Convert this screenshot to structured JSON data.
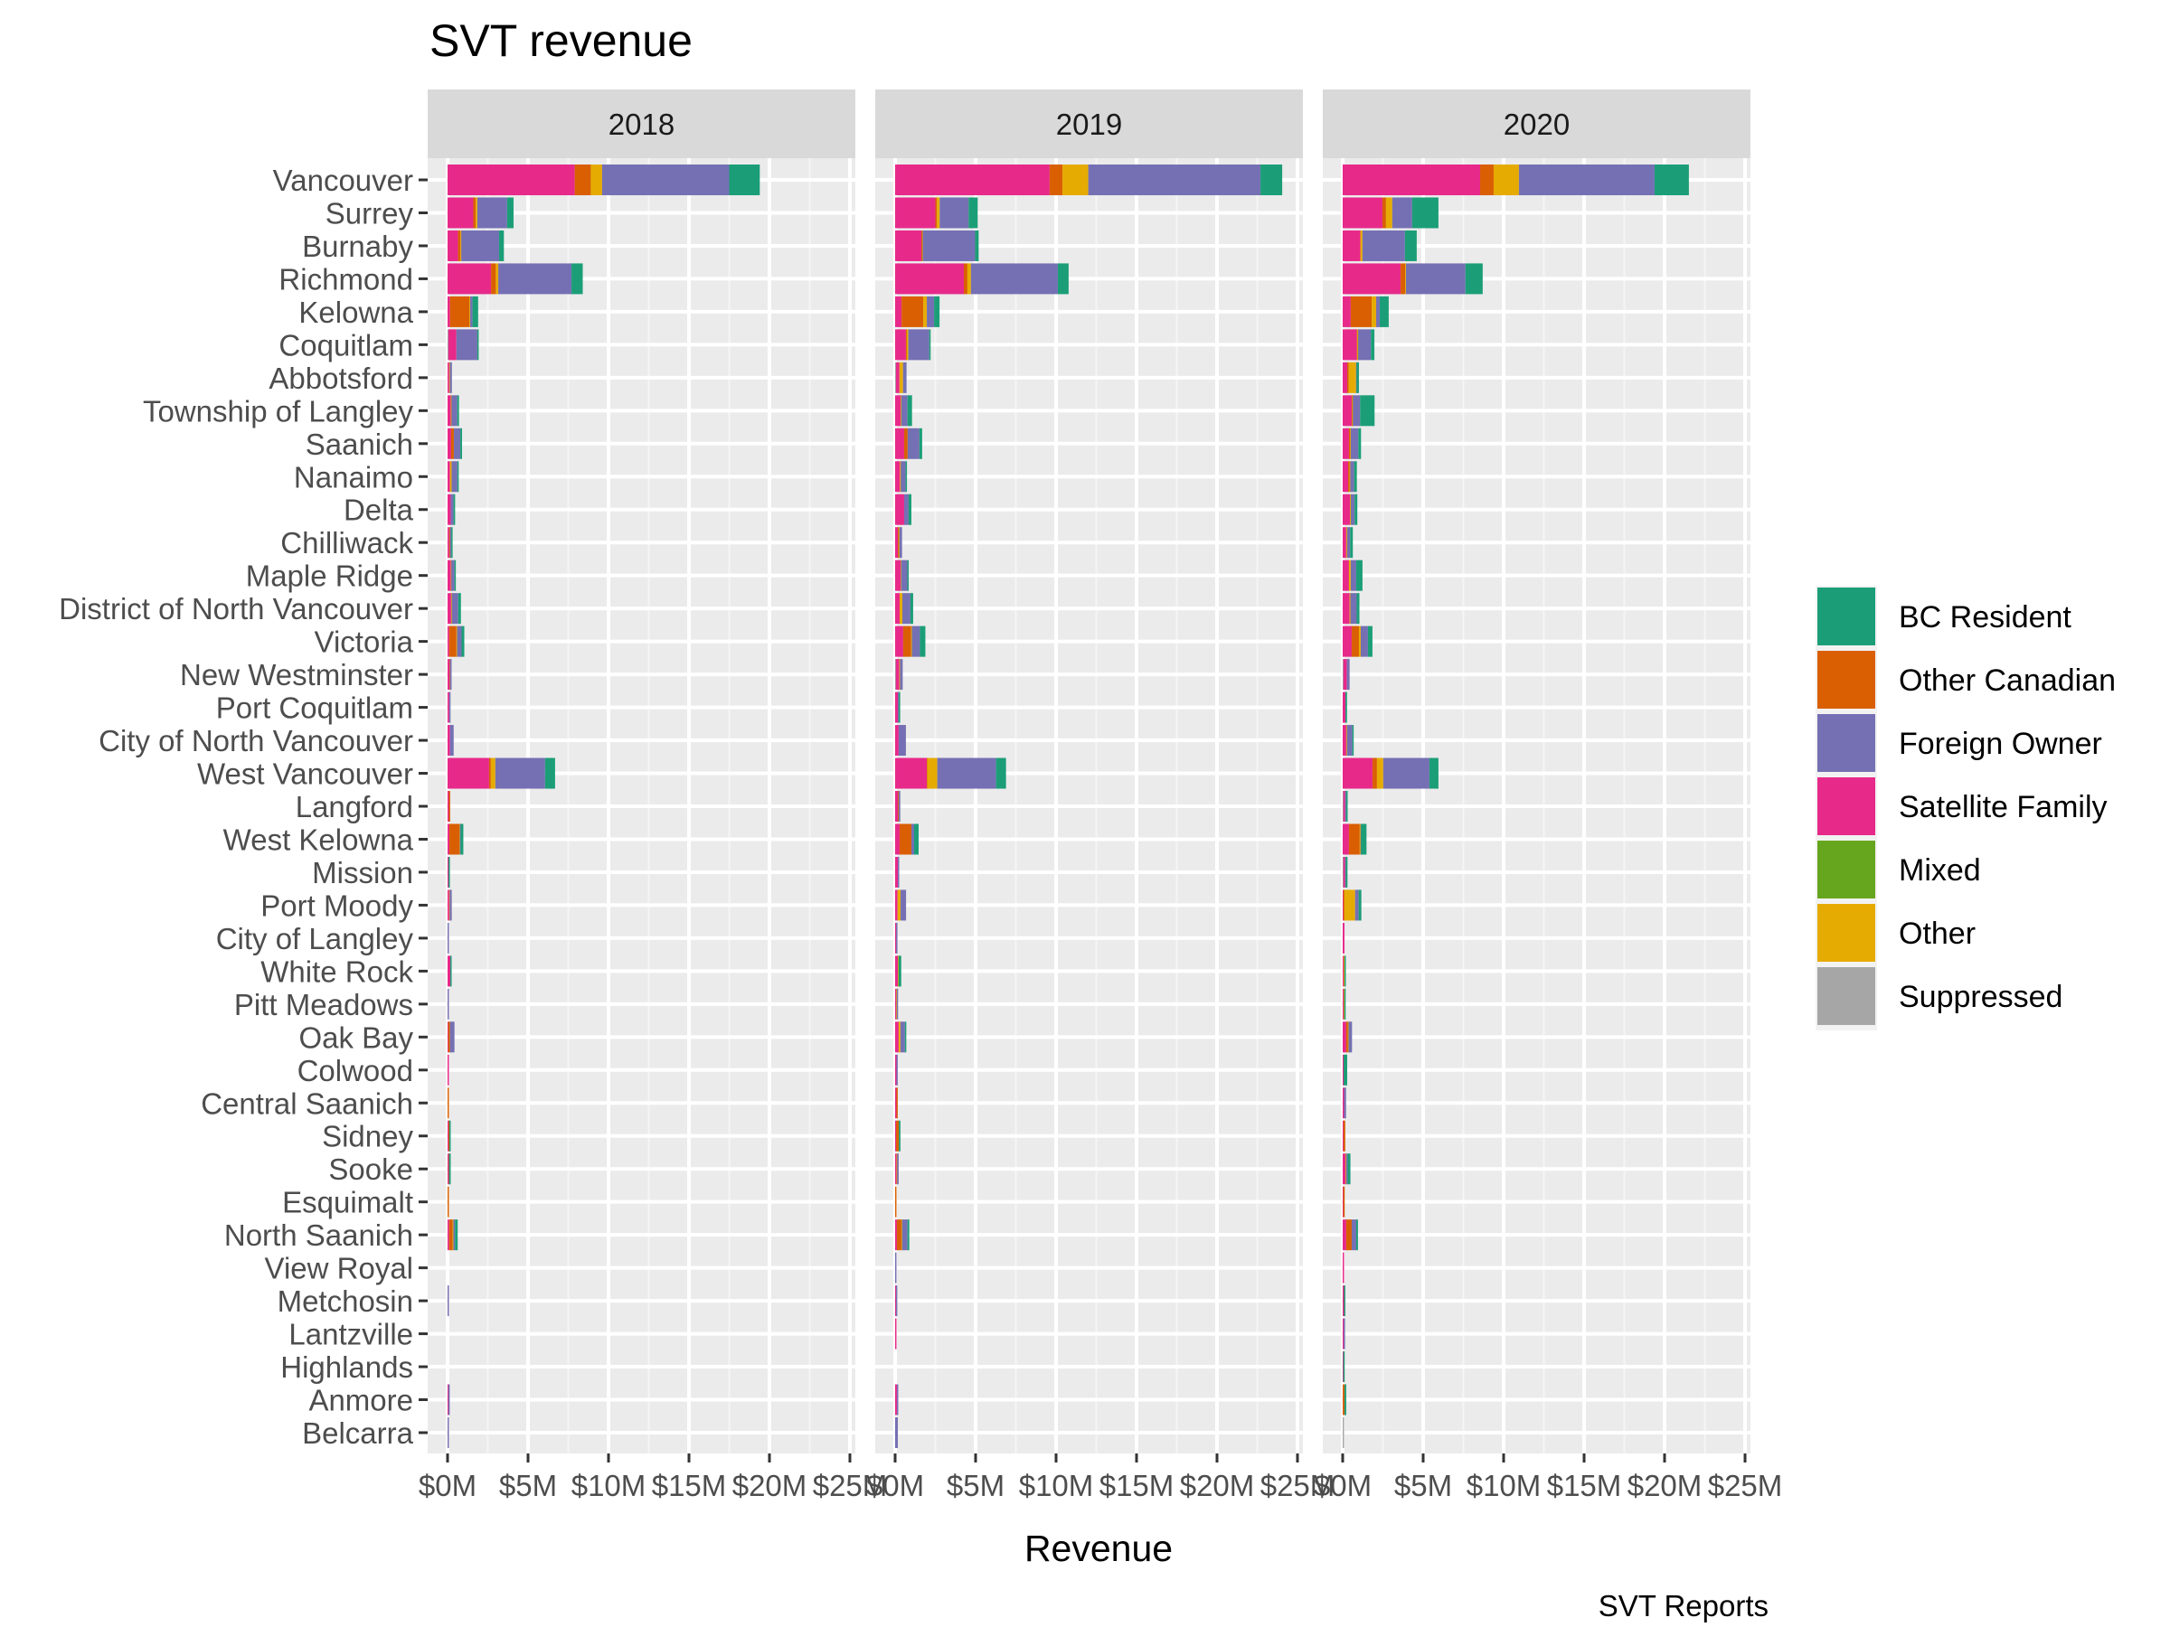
{
  "chart_data": {
    "type": "bar",
    "orientation": "horizontal",
    "stacked": true,
    "title": "SVT revenue",
    "xlabel": "Revenue",
    "ylabel": "",
    "caption": "SVT Reports",
    "xlim": [
      0,
      25
    ],
    "x_unit": "millions of dollars",
    "x_ticks": [
      0,
      5,
      10,
      15,
      20,
      25
    ],
    "x_tick_labels": [
      "$0M",
      "$5M",
      "$10M",
      "$15M",
      "$20M",
      "$25M"
    ],
    "grid": true,
    "legend_position": "right",
    "facets": [
      "2018",
      "2019",
      "2020"
    ],
    "categories": [
      "Vancouver",
      "Surrey",
      "Burnaby",
      "Richmond",
      "Kelowna",
      "Coquitlam",
      "Abbotsford",
      "Township of Langley",
      "Saanich",
      "Nanaimo",
      "Delta",
      "Chilliwack",
      "Maple Ridge",
      "District of North Vancouver",
      "Victoria",
      "New Westminster",
      "Port Coquitlam",
      "City of North Vancouver",
      "West Vancouver",
      "Langford",
      "West Kelowna",
      "Mission",
      "Port Moody",
      "City of Langley",
      "White Rock",
      "Pitt Meadows",
      "Oak Bay",
      "Colwood",
      "Central Saanich",
      "Sidney",
      "Sooke",
      "Esquimalt",
      "North Saanich",
      "View Royal",
      "Metchosin",
      "Lantzville",
      "Highlands",
      "Anmore",
      "Belcarra"
    ],
    "legend": [
      {
        "name": "BC Resident",
        "color": "#1b9e77"
      },
      {
        "name": "Other Canadian",
        "color": "#d95f02"
      },
      {
        "name": "Foreign Owner",
        "color": "#7570b3"
      },
      {
        "name": "Satellite Family",
        "color": "#e7298a"
      },
      {
        "name": "Mixed",
        "color": "#66a61e"
      },
      {
        "name": "Other",
        "color": "#e6ab02"
      },
      {
        "name": "Suppressed",
        "color": "#a6a6a6"
      }
    ],
    "stack_order": [
      "Suppressed",
      "Satellite Family",
      "Mixed",
      "Other Canadian",
      "Other",
      "Foreign Owner",
      "BC Resident"
    ],
    "series_by_facet": {
      "2018": {
        "Suppressed": [
          0,
          0,
          0,
          0,
          0,
          0.05,
          0,
          0,
          0,
          0,
          0,
          0,
          0,
          0,
          0,
          0,
          0,
          0,
          0,
          0,
          0,
          0,
          0,
          0,
          0,
          0,
          0,
          0,
          0,
          0,
          0,
          0,
          0,
          0,
          0,
          0,
          0,
          0,
          0
        ],
        "Satellite Family": [
          7.9,
          1.6,
          0.65,
          2.7,
          0.15,
          0.5,
          0.1,
          0.2,
          0.22,
          0.15,
          0.2,
          0.1,
          0.2,
          0.22,
          0.1,
          0.12,
          0.1,
          0.15,
          2.58,
          0.08,
          0.11,
          0.06,
          0.1,
          0,
          0.17,
          0,
          0.04,
          0.05,
          0,
          0.06,
          0.05,
          0,
          0.1,
          0,
          0,
          0,
          0,
          0.05,
          0
        ],
        "Mixed": [
          0,
          0,
          0,
          0,
          0,
          0,
          0,
          0,
          0,
          0,
          0,
          0,
          0,
          0,
          0,
          0,
          0,
          0,
          0,
          0,
          0,
          0,
          0,
          0,
          0,
          0,
          0,
          0,
          0,
          0,
          0,
          0,
          0,
          0,
          0,
          0,
          0,
          0,
          0
        ],
        "Other Canadian": [
          1.0,
          0.15,
          0.15,
          0.3,
          1.2,
          0,
          0,
          0,
          0.17,
          0,
          0,
          0.05,
          0,
          0,
          0.45,
          0.03,
          0,
          0,
          0.11,
          0.02,
          0.62,
          0,
          0,
          0,
          0,
          0,
          0.11,
          0,
          0.05,
          0.05,
          0.03,
          0.05,
          0.22,
          0,
          0,
          0,
          0,
          0,
          0
        ],
        "Other": [
          0.7,
          0.1,
          0.05,
          0.15,
          0.05,
          0,
          0.04,
          0.04,
          0,
          0.1,
          0,
          0,
          0.03,
          0.04,
          0.04,
          0,
          0,
          0,
          0.28,
          0,
          0.03,
          0,
          0.03,
          0,
          0,
          0,
          0,
          0,
          0,
          0,
          0,
          0,
          0.04,
          0,
          0,
          0,
          0,
          0,
          0
        ],
        "Foreign Owner": [
          7.9,
          1.85,
          2.35,
          4.55,
          0.15,
          1.3,
          0.13,
          0.36,
          0.4,
          0.36,
          0.17,
          0.08,
          0.2,
          0.4,
          0.28,
          0.1,
          0.05,
          0.23,
          3.09,
          0,
          0.05,
          0,
          0.13,
          0.05,
          0,
          0.05,
          0.28,
          0,
          0,
          0,
          0.03,
          0,
          0.1,
          0,
          0.05,
          0,
          0,
          0.05,
          0.05
        ],
        "BC Resident": [
          1.9,
          0.4,
          0.3,
          0.7,
          0.35,
          0.03,
          0,
          0.11,
          0.11,
          0.02,
          0.1,
          0.02,
          0.03,
          0.17,
          0.17,
          0,
          0,
          0,
          0.62,
          0,
          0.17,
          0.04,
          0,
          0,
          0.06,
          0,
          0,
          0,
          0,
          0.04,
          0.02,
          0,
          0.17,
          0,
          0,
          0,
          0,
          0,
          0
        ]
      },
      "2019": {
        "Suppressed": [
          0,
          0,
          0,
          0,
          0,
          0,
          0.05,
          0,
          0,
          0,
          0,
          0,
          0,
          0,
          0,
          0.04,
          0,
          0,
          0,
          0,
          0,
          0,
          0,
          0,
          0,
          0,
          0,
          0,
          0,
          0,
          0,
          0,
          0,
          0,
          0,
          0,
          0,
          0,
          0
        ],
        "Satellite Family": [
          9.6,
          2.5,
          1.63,
          4.27,
          0.4,
          0.67,
          0.22,
          0.34,
          0.56,
          0.3,
          0.56,
          0.17,
          0.34,
          0.28,
          0.5,
          0.22,
          0.17,
          0.22,
          1.97,
          0.17,
          0.28,
          0.17,
          0.15,
          0.06,
          0.17,
          0.06,
          0.22,
          0.08,
          0.08,
          0.06,
          0.08,
          0,
          0.11,
          0,
          0.05,
          0.05,
          0,
          0.11,
          0
        ],
        "Mixed": [
          0,
          0,
          0,
          0,
          0,
          0,
          0,
          0,
          0,
          0,
          0,
          0,
          0,
          0,
          0,
          0,
          0,
          0,
          0,
          0,
          0,
          0,
          0,
          0,
          0,
          0,
          0,
          0,
          0,
          0,
          0,
          0,
          0,
          0,
          0,
          0,
          0,
          0,
          0
        ],
        "Other Canadian": [
          0.8,
          0.1,
          0.05,
          0.22,
          1.35,
          0.05,
          0,
          0,
          0.22,
          0,
          0,
          0.05,
          0,
          0,
          0.5,
          0,
          0,
          0,
          0.03,
          0.05,
          0.73,
          0,
          0,
          0,
          0,
          0,
          0,
          0,
          0.08,
          0.17,
          0,
          0.05,
          0.28,
          0,
          0,
          0,
          0,
          0,
          0
        ],
        "Other": [
          1.6,
          0.17,
          0.03,
          0.22,
          0.22,
          0.1,
          0.22,
          0.04,
          0,
          0.05,
          0,
          0.04,
          0.03,
          0.17,
          0.04,
          0.04,
          0,
          0,
          0.62,
          0,
          0,
          0,
          0.19,
          0,
          0.04,
          0.04,
          0.11,
          0,
          0,
          0,
          0.04,
          0,
          0.04,
          0,
          0,
          0,
          0,
          0,
          0
        ],
        "Foreign Owner": [
          10.7,
          1.8,
          3.26,
          5.4,
          0.45,
          1.3,
          0.22,
          0.39,
          0.73,
          0.3,
          0.28,
          0.17,
          0.39,
          0.5,
          0.5,
          0.17,
          0.06,
          0.45,
          3.65,
          0.1,
          0.17,
          0.04,
          0.34,
          0.04,
          0,
          0.04,
          0.28,
          0.08,
          0,
          0,
          0.1,
          0,
          0.34,
          0.05,
          0.05,
          0,
          0,
          0.05,
          0.17
        ],
        "BC Resident": [
          1.35,
          0.56,
          0.22,
          0.67,
          0.34,
          0.05,
          0,
          0.28,
          0.17,
          0.04,
          0.17,
          0,
          0.04,
          0.17,
          0.34,
          0,
          0.04,
          0,
          0.62,
          0,
          0.28,
          0,
          0,
          0,
          0.17,
          0,
          0.05,
          0,
          0,
          0.1,
          0,
          0,
          0.11,
          0,
          0,
          0,
          0,
          0,
          0
        ]
      },
      "2020": {
        "Suppressed": [
          0,
          0,
          0,
          0,
          0,
          0,
          0,
          0,
          0,
          0,
          0,
          0,
          0,
          0,
          0,
          0.04,
          0,
          0,
          0,
          0.04,
          0,
          0.04,
          0,
          0,
          0,
          0,
          0,
          0,
          0,
          0,
          0,
          0,
          0,
          0,
          0,
          0,
          0,
          0,
          0.05
        ],
        "Satellite Family": [
          8.54,
          2.47,
          1.1,
          3.6,
          0.5,
          0.88,
          0.28,
          0.56,
          0.39,
          0.34,
          0.45,
          0.22,
          0.39,
          0.43,
          0.56,
          0.22,
          0.17,
          0.22,
          1.85,
          0.11,
          0.39,
          0.11,
          0.04,
          0.11,
          0.06,
          0.06,
          0.22,
          0.06,
          0.08,
          0.05,
          0.17,
          0.04,
          0.22,
          0.06,
          0.08,
          0.06,
          0.04,
          0,
          0
        ],
        "Mixed": [
          0,
          0,
          0,
          0,
          0,
          0,
          0,
          0,
          0,
          0,
          0,
          0,
          0,
          0,
          0,
          0,
          0,
          0,
          0,
          0,
          0,
          0,
          0,
          0,
          0,
          0,
          0,
          0,
          0,
          0,
          0,
          0,
          0,
          0,
          0,
          0,
          0,
          0,
          0
        ],
        "Other Canadian": [
          0.84,
          0.22,
          0,
          0.28,
          1.3,
          0.03,
          0.1,
          0.03,
          0.07,
          0.1,
          0,
          0,
          0,
          0,
          0.45,
          0,
          0,
          0,
          0.28,
          0,
          0.67,
          0,
          0.06,
          0,
          0,
          0,
          0.11,
          0,
          0,
          0.11,
          0,
          0.07,
          0.34,
          0,
          0,
          0,
          0,
          0.11,
          0
        ],
        "Other": [
          1.57,
          0.39,
          0.13,
          0.05,
          0.28,
          0.05,
          0.45,
          0.04,
          0.04,
          0.03,
          0.05,
          0.05,
          0.11,
          0.05,
          0.11,
          0,
          0,
          0.04,
          0.39,
          0,
          0.05,
          0,
          0.67,
          0,
          0.05,
          0.04,
          0.03,
          0,
          0,
          0,
          0.04,
          0,
          0,
          0,
          0,
          0,
          0,
          0,
          0
        ],
        "Foreign Owner": [
          8.43,
          1.24,
          2.64,
          3.7,
          0.22,
          0.79,
          0.03,
          0.45,
          0.47,
          0.24,
          0.24,
          0.19,
          0.34,
          0.39,
          0.45,
          0.17,
          0,
          0.34,
          2.87,
          0.06,
          0.03,
          0.04,
          0.22,
          0,
          0,
          0,
          0.22,
          0,
          0.13,
          0,
          0.1,
          0,
          0.28,
          0,
          0,
          0.06,
          0,
          0,
          0
        ],
        "BC Resident": [
          2.13,
          1.63,
          0.73,
          1.07,
          0.56,
          0.22,
          0.15,
          0.9,
          0.17,
          0.17,
          0.17,
          0.17,
          0.39,
          0.17,
          0.28,
          0,
          0.1,
          0.04,
          0.56,
          0.1,
          0.34,
          0.11,
          0.17,
          0,
          0.08,
          0.08,
          0,
          0.22,
          0,
          0,
          0.17,
          0,
          0.11,
          0,
          0.08,
          0,
          0.06,
          0.11,
          0
        ]
      }
    }
  }
}
